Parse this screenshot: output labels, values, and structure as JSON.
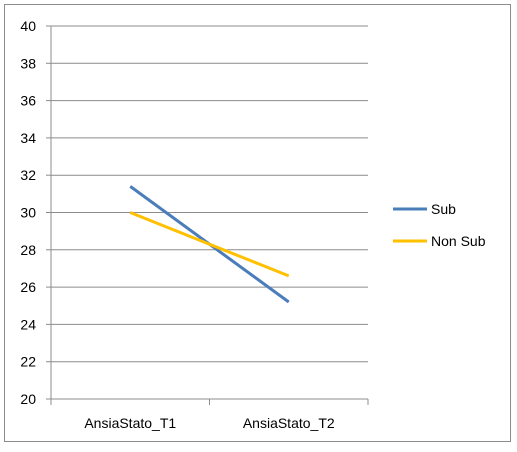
{
  "chart_data": {
    "type": "line",
    "title": "",
    "xlabel": "",
    "ylabel": "",
    "categories": [
      "AnsiaStato_T1",
      "AnsiaStato_T2"
    ],
    "ylim": [
      20,
      40
    ],
    "yticks": [
      20,
      22,
      24,
      26,
      28,
      30,
      32,
      34,
      36,
      38,
      40
    ],
    "grid": true,
    "legend_position": "right",
    "series": [
      {
        "name": "Sub",
        "values": [
          31.4,
          25.2
        ],
        "color": "#4a7ebb"
      },
      {
        "name": "Non Sub",
        "values": [
          30.0,
          26.6
        ],
        "color": "#ffc000"
      }
    ]
  }
}
